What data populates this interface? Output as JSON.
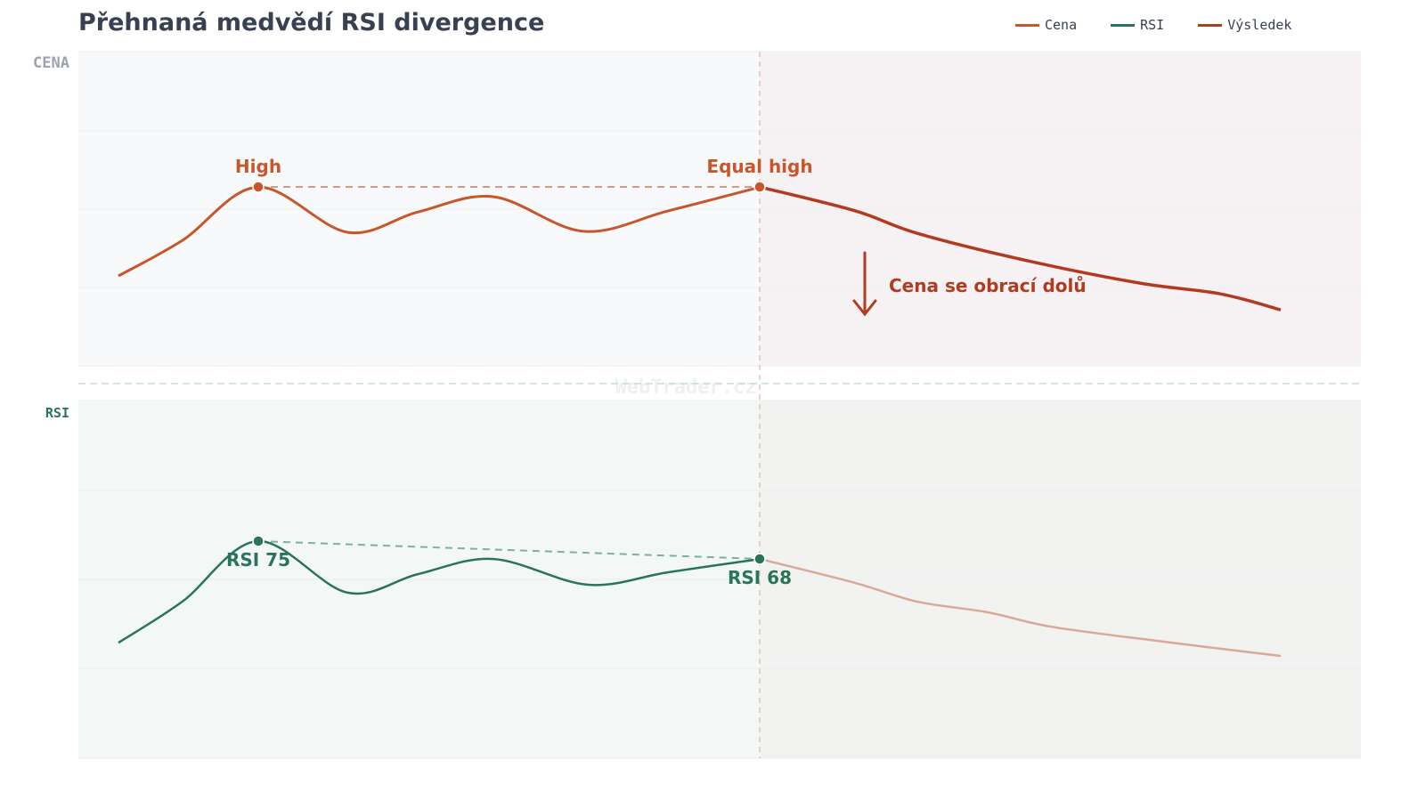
{
  "title": "Přehnaná medvědí RSI divergence",
  "watermark": "WebTrader.cz",
  "legend": [
    {
      "label": "Cena",
      "color": "#c8562a"
    },
    {
      "label": "RSI",
      "color": "#2a7458"
    },
    {
      "label": "Výsledek",
      "color": "#b23a1e"
    }
  ],
  "panels": {
    "price_label": "CENA",
    "rsi_label": "RSI"
  },
  "annotations": {
    "high": "High",
    "equal_high": "Equal high",
    "reversal": "Cena se obrací dolů",
    "rsi_first": "RSI 75",
    "rsi_second": "RSI 68"
  },
  "chart_data": {
    "type": "line",
    "title": "Přehnaná medvědí RSI divergence",
    "grid": true,
    "legend_position": "top-right",
    "xlim": [
      0,
      100
    ],
    "series": [
      {
        "name": "Cena",
        "x": [
          0,
          5.5,
          12,
          19.7,
          25.8,
          32.3,
          40,
          47.3,
          55.2
        ],
        "y": [
          28.6,
          39.9,
          56.9,
          42.5,
          49,
          53.8,
          42.8,
          49.3,
          56.9
        ]
      },
      {
        "name": "Výsledek",
        "x": [
          55.2,
          63.4,
          68.7,
          77.9,
          87.9,
          94.8,
          100
        ],
        "y": [
          56.9,
          49.3,
          42.2,
          33.7,
          26.3,
          22.9,
          17.8
        ]
      },
      {
        "name": "RSI",
        "x": [
          0,
          5.5,
          12,
          19.7,
          25.8,
          32.3,
          40.4,
          47.3,
          55.2
        ],
        "y": [
          32.3,
          43.8,
          60.7,
          46.3,
          51.5,
          55.7,
          48.5,
          52,
          55.7
        ]
      },
      {
        "x": [
          55.2,
          63.4,
          68.7,
          74.8,
          80.2,
          89.4,
          100
        ],
        "y": [
          55.7,
          49,
          43.8,
          40.8,
          36.8,
          32.8,
          28.6
        ]
      }
    ],
    "ylim": [
      0,
      100
    ]
  }
}
